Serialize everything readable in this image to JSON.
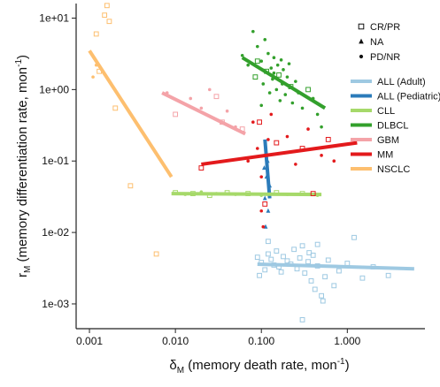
{
  "chart_data": {
    "type": "scatter",
    "x_scale": "log",
    "y_scale": "log",
    "xlim": [
      0.0007,
      8.0
    ],
    "ylim": [
      0.00045,
      16.0
    ],
    "x_ticks": [
      {
        "value": 0.001,
        "label": "0.001"
      },
      {
        "value": 0.01,
        "label": "0.010"
      },
      {
        "value": 0.1,
        "label": "0.100"
      },
      {
        "value": 1.0,
        "label": "1.000"
      }
    ],
    "y_ticks": [
      {
        "value": 0.001,
        "label": "1e-03"
      },
      {
        "value": 0.01,
        "label": "1e-02"
      },
      {
        "value": 0.1,
        "label": "1e-01"
      },
      {
        "value": 1.0,
        "label": "1e+00"
      },
      {
        "value": 10.0,
        "label": "1e+01"
      }
    ],
    "xlabel": {
      "symbol": "δ",
      "sub": "M",
      "text": " (memory death rate, mon",
      "sup": "-1",
      "tail": ")"
    },
    "ylabel": {
      "symbol": "r",
      "sub": "M",
      "text": " (memory differentiation rate, mon",
      "sup": "-1",
      "tail": ")"
    },
    "grid": false,
    "shape_legend": {
      "placement": "top-right",
      "entries": [
        {
          "marker": "square",
          "label": "CR/PR"
        },
        {
          "marker": "triangle",
          "label": "NA"
        },
        {
          "marker": "dot",
          "label": "PD/NR"
        }
      ]
    },
    "color_legend": {
      "placement": "right",
      "entries": [
        {
          "label": "ALL (Adult)",
          "color": "#9ec9e2"
        },
        {
          "label": "ALL (Pediatric)",
          "color": "#2b7bba"
        },
        {
          "label": "CLL",
          "color": "#a6d96a"
        },
        {
          "label": "DLBCL",
          "color": "#33a02c"
        },
        {
          "label": "GBM",
          "color": "#f4a3a8"
        },
        {
          "label": "MM",
          "color": "#e31a1c"
        },
        {
          "label": "NSCLC",
          "color": "#fdbf6f"
        }
      ]
    },
    "series": [
      {
        "name": "ALL (Adult)",
        "color": "#9ec9e2",
        "fit": [
          {
            "x": 0.09,
            "y": 0.0036
          },
          {
            "x": 6.0,
            "y": 0.0031
          }
        ],
        "points": [
          {
            "x": 0.09,
            "y": 0.0045,
            "m": "square"
          },
          {
            "x": 0.1,
            "y": 0.0038,
            "m": "square"
          },
          {
            "x": 0.11,
            "y": 0.003,
            "m": "square"
          },
          {
            "x": 0.095,
            "y": 0.0025,
            "m": "square"
          },
          {
            "x": 0.12,
            "y": 0.005,
            "m": "square"
          },
          {
            "x": 0.13,
            "y": 0.0042,
            "m": "square"
          },
          {
            "x": 0.14,
            "y": 0.0035,
            "m": "square"
          },
          {
            "x": 0.15,
            "y": 0.0055,
            "m": "square"
          },
          {
            "x": 0.16,
            "y": 0.0033,
            "m": "square"
          },
          {
            "x": 0.17,
            "y": 0.0028,
            "m": "square"
          },
          {
            "x": 0.18,
            "y": 0.0046,
            "m": "square"
          },
          {
            "x": 0.2,
            "y": 0.004,
            "m": "square"
          },
          {
            "x": 0.22,
            "y": 0.0036,
            "m": "square"
          },
          {
            "x": 0.24,
            "y": 0.0058,
            "m": "square"
          },
          {
            "x": 0.26,
            "y": 0.0031,
            "m": "square"
          },
          {
            "x": 0.28,
            "y": 0.0044,
            "m": "square"
          },
          {
            "x": 0.3,
            "y": 0.0065,
            "m": "square"
          },
          {
            "x": 0.32,
            "y": 0.0027,
            "m": "square"
          },
          {
            "x": 0.35,
            "y": 0.0039,
            "m": "square"
          },
          {
            "x": 0.38,
            "y": 0.0021,
            "m": "square"
          },
          {
            "x": 0.4,
            "y": 0.0048,
            "m": "square"
          },
          {
            "x": 0.42,
            "y": 0.0016,
            "m": "square"
          },
          {
            "x": 0.45,
            "y": 0.0034,
            "m": "square"
          },
          {
            "x": 0.5,
            "y": 0.0013,
            "m": "square"
          },
          {
            "x": 0.52,
            "y": 0.0011,
            "m": "square"
          },
          {
            "x": 0.55,
            "y": 0.0024,
            "m": "square"
          },
          {
            "x": 0.6,
            "y": 0.0041,
            "m": "square"
          },
          {
            "x": 0.7,
            "y": 0.0018,
            "m": "square"
          },
          {
            "x": 0.8,
            "y": 0.0029,
            "m": "square"
          },
          {
            "x": 1.0,
            "y": 0.0037,
            "m": "square"
          },
          {
            "x": 1.2,
            "y": 0.0085,
            "m": "square"
          },
          {
            "x": 1.5,
            "y": 0.0023,
            "m": "square"
          },
          {
            "x": 2.0,
            "y": 0.0033,
            "m": "square"
          },
          {
            "x": 3.0,
            "y": 0.0025,
            "m": "square"
          },
          {
            "x": 0.3,
            "y": 0.0006,
            "m": "square"
          },
          {
            "x": 0.12,
            "y": 0.0075,
            "m": "square"
          },
          {
            "x": 0.45,
            "y": 0.0068,
            "m": "square"
          },
          {
            "x": 0.36,
            "y": 0.0052,
            "m": "square"
          }
        ]
      },
      {
        "name": "ALL (Pediatric)",
        "color": "#2b7bba",
        "fit": [
          {
            "x": 0.11,
            "y": 0.2
          },
          {
            "x": 0.125,
            "y": 0.03
          }
        ],
        "points": [
          {
            "x": 0.11,
            "y": 0.03,
            "m": "triangle"
          },
          {
            "x": 0.115,
            "y": 0.06,
            "m": "triangle"
          },
          {
            "x": 0.12,
            "y": 0.02,
            "m": "triangle"
          },
          {
            "x": 0.112,
            "y": 0.012,
            "m": "triangle"
          },
          {
            "x": 0.118,
            "y": 0.1,
            "m": "triangle"
          },
          {
            "x": 0.125,
            "y": 0.045,
            "m": "triangle"
          },
          {
            "x": 0.108,
            "y": 0.08,
            "m": "triangle"
          }
        ]
      },
      {
        "name": "CLL",
        "color": "#a6d96a",
        "fit": [
          {
            "x": 0.009,
            "y": 0.035
          },
          {
            "x": 0.5,
            "y": 0.034
          }
        ],
        "points": [
          {
            "x": 0.01,
            "y": 0.036,
            "m": "square"
          },
          {
            "x": 0.013,
            "y": 0.034,
            "m": "dot"
          },
          {
            "x": 0.016,
            "y": 0.035,
            "m": "square"
          },
          {
            "x": 0.02,
            "y": 0.037,
            "m": "dot"
          },
          {
            "x": 0.025,
            "y": 0.033,
            "m": "square"
          },
          {
            "x": 0.03,
            "y": 0.035,
            "m": "dot"
          },
          {
            "x": 0.04,
            "y": 0.036,
            "m": "square"
          },
          {
            "x": 0.05,
            "y": 0.034,
            "m": "dot"
          },
          {
            "x": 0.07,
            "y": 0.035,
            "m": "square"
          },
          {
            "x": 0.1,
            "y": 0.033,
            "m": "dot"
          },
          {
            "x": 0.15,
            "y": 0.036,
            "m": "square"
          },
          {
            "x": 0.2,
            "y": 0.034,
            "m": "dot"
          },
          {
            "x": 0.3,
            "y": 0.035,
            "m": "square"
          },
          {
            "x": 0.45,
            "y": 0.033,
            "m": "dot"
          }
        ]
      },
      {
        "name": "DLBCL",
        "color": "#33a02c",
        "fit": [
          {
            "x": 0.06,
            "y": 2.8
          },
          {
            "x": 0.55,
            "y": 0.55
          }
        ],
        "points": [
          {
            "x": 0.06,
            "y": 3.0,
            "m": "dot"
          },
          {
            "x": 0.07,
            "y": 2.2,
            "m": "dot"
          },
          {
            "x": 0.08,
            "y": 6.5,
            "m": "dot"
          },
          {
            "x": 0.085,
            "y": 1.5,
            "m": "square"
          },
          {
            "x": 0.09,
            "y": 4.0,
            "m": "dot"
          },
          {
            "x": 0.1,
            "y": 2.5,
            "m": "dot"
          },
          {
            "x": 0.105,
            "y": 1.2,
            "m": "dot"
          },
          {
            "x": 0.11,
            "y": 5.0,
            "m": "dot"
          },
          {
            "x": 0.115,
            "y": 1.8,
            "m": "square"
          },
          {
            "x": 0.12,
            "y": 3.2,
            "m": "dot"
          },
          {
            "x": 0.125,
            "y": 0.9,
            "m": "dot"
          },
          {
            "x": 0.13,
            "y": 2.0,
            "m": "dot"
          },
          {
            "x": 0.135,
            "y": 1.4,
            "m": "dot"
          },
          {
            "x": 0.14,
            "y": 2.8,
            "m": "dot"
          },
          {
            "x": 0.15,
            "y": 1.0,
            "m": "dot"
          },
          {
            "x": 0.155,
            "y": 2.2,
            "m": "dot"
          },
          {
            "x": 0.16,
            "y": 1.6,
            "m": "square"
          },
          {
            "x": 0.165,
            "y": 0.7,
            "m": "dot"
          },
          {
            "x": 0.17,
            "y": 2.6,
            "m": "dot"
          },
          {
            "x": 0.175,
            "y": 1.2,
            "m": "dot"
          },
          {
            "x": 0.18,
            "y": 1.9,
            "m": "dot"
          },
          {
            "x": 0.19,
            "y": 0.85,
            "m": "dot"
          },
          {
            "x": 0.2,
            "y": 1.5,
            "m": "dot"
          },
          {
            "x": 0.21,
            "y": 2.3,
            "m": "dot"
          },
          {
            "x": 0.22,
            "y": 1.1,
            "m": "square"
          },
          {
            "x": 0.23,
            "y": 0.65,
            "m": "dot"
          },
          {
            "x": 0.25,
            "y": 1.3,
            "m": "dot"
          },
          {
            "x": 0.27,
            "y": 0.9,
            "m": "dot"
          },
          {
            "x": 0.3,
            "y": 0.55,
            "m": "dot"
          },
          {
            "x": 0.35,
            "y": 1.0,
            "m": "square"
          },
          {
            "x": 0.4,
            "y": 0.75,
            "m": "dot"
          },
          {
            "x": 0.45,
            "y": 0.45,
            "m": "dot"
          },
          {
            "x": 0.5,
            "y": 0.3,
            "m": "dot"
          },
          {
            "x": 0.1,
            "y": 0.6,
            "m": "dot"
          },
          {
            "x": 0.09,
            "y": 2.5,
            "m": "square"
          },
          {
            "x": 0.14,
            "y": 1.7,
            "m": "dot"
          }
        ]
      },
      {
        "name": "GBM",
        "color": "#f4a3a8",
        "fit": [
          {
            "x": 0.007,
            "y": 0.9
          },
          {
            "x": 0.065,
            "y": 0.24
          }
        ],
        "points": [
          {
            "x": 0.008,
            "y": 0.9,
            "m": "dot"
          },
          {
            "x": 0.01,
            "y": 0.45,
            "m": "square"
          },
          {
            "x": 0.015,
            "y": 0.75,
            "m": "dot"
          },
          {
            "x": 0.02,
            "y": 0.55,
            "m": "dot"
          },
          {
            "x": 0.03,
            "y": 0.8,
            "m": "square"
          },
          {
            "x": 0.035,
            "y": 0.35,
            "m": "square"
          },
          {
            "x": 0.04,
            "y": 0.5,
            "m": "dot"
          },
          {
            "x": 0.05,
            "y": 0.3,
            "m": "dot"
          },
          {
            "x": 0.06,
            "y": 0.28,
            "m": "square"
          },
          {
            "x": 0.025,
            "y": 1.0,
            "m": "dot"
          }
        ]
      },
      {
        "name": "MM",
        "color": "#e31a1c",
        "fit": [
          {
            "x": 0.02,
            "y": 0.09
          },
          {
            "x": 1.3,
            "y": 0.18
          }
        ],
        "points": [
          {
            "x": 0.02,
            "y": 0.08,
            "m": "square"
          },
          {
            "x": 0.07,
            "y": 0.1,
            "m": "dot"
          },
          {
            "x": 0.08,
            "y": 0.35,
            "m": "dot"
          },
          {
            "x": 0.09,
            "y": 0.15,
            "m": "dot"
          },
          {
            "x": 0.095,
            "y": 0.35,
            "m": "square"
          },
          {
            "x": 0.1,
            "y": 0.06,
            "m": "dot"
          },
          {
            "x": 0.1,
            "y": 0.02,
            "m": "dot"
          },
          {
            "x": 0.105,
            "y": 0.012,
            "m": "dot"
          },
          {
            "x": 0.11,
            "y": 0.025,
            "m": "square"
          },
          {
            "x": 0.12,
            "y": 0.2,
            "m": "dot"
          },
          {
            "x": 0.13,
            "y": 0.45,
            "m": "dot"
          },
          {
            "x": 0.15,
            "y": 0.18,
            "m": "square"
          },
          {
            "x": 0.2,
            "y": 0.22,
            "m": "dot"
          },
          {
            "x": 0.25,
            "y": 0.09,
            "m": "dot"
          },
          {
            "x": 0.3,
            "y": 0.15,
            "m": "square"
          },
          {
            "x": 0.4,
            "y": 0.035,
            "m": "square"
          },
          {
            "x": 0.5,
            "y": 0.12,
            "m": "dot"
          },
          {
            "x": 0.6,
            "y": 0.2,
            "m": "square"
          },
          {
            "x": 0.7,
            "y": 0.1,
            "m": "dot"
          },
          {
            "x": 0.35,
            "y": 0.28,
            "m": "dot"
          }
        ]
      },
      {
        "name": "NSCLC",
        "color": "#fdbf6f",
        "fit": [
          {
            "x": 0.001,
            "y": 3.5
          },
          {
            "x": 0.009,
            "y": 0.06
          }
        ],
        "points": [
          {
            "x": 0.0011,
            "y": 1.5,
            "m": "dot"
          },
          {
            "x": 0.0012,
            "y": 6.0,
            "m": "square"
          },
          {
            "x": 0.0013,
            "y": 1.8,
            "m": "square"
          },
          {
            "x": 0.0015,
            "y": 11.0,
            "m": "square"
          },
          {
            "x": 0.0016,
            "y": 15.0,
            "m": "square"
          },
          {
            "x": 0.0017,
            "y": 9.0,
            "m": "square"
          },
          {
            "x": 0.002,
            "y": 0.55,
            "m": "square"
          },
          {
            "x": 0.003,
            "y": 0.045,
            "m": "square"
          },
          {
            "x": 0.006,
            "y": 0.005,
            "m": "square"
          },
          {
            "x": 0.0012,
            "y": 2.2,
            "m": "dot"
          }
        ]
      }
    ]
  }
}
